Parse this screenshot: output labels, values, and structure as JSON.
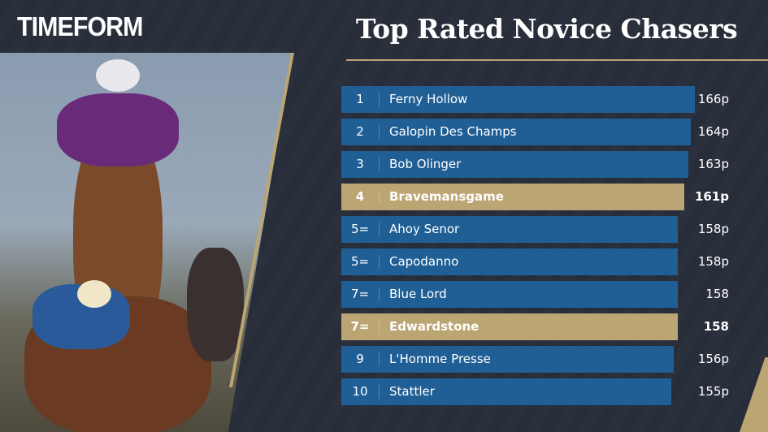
{
  "logo": "TIMEFORM",
  "title": "Top Rated Novice Chasers",
  "colors": {
    "background": "#272d39",
    "bar": "#1f5f96",
    "highlight": "#bba573"
  },
  "chart_data": {
    "type": "bar",
    "orientation": "horizontal",
    "title": "Top Rated Novice Chasers",
    "xlim": [
      0,
      166
    ],
    "rows": [
      {
        "rank": "1",
        "name": "Ferny Hollow",
        "value": 166,
        "label": "166p",
        "highlight": false
      },
      {
        "rank": "2",
        "name": "Galopin Des Champs",
        "value": 164,
        "label": "164p",
        "highlight": false
      },
      {
        "rank": "3",
        "name": "Bob Olinger",
        "value": 163,
        "label": "163p",
        "highlight": false
      },
      {
        "rank": "4",
        "name": "Bravemansgame",
        "value": 161,
        "label": "161p",
        "highlight": true
      },
      {
        "rank": "5=",
        "name": "Ahoy Senor",
        "value": 158,
        "label": "158p",
        "highlight": false
      },
      {
        "rank": "5=",
        "name": "Capodanno",
        "value": 158,
        "label": "158p",
        "highlight": false
      },
      {
        "rank": "7=",
        "name": "Blue Lord",
        "value": 158,
        "label": "158",
        "highlight": false
      },
      {
        "rank": "7=",
        "name": "Edwardstone",
        "value": 158,
        "label": "158",
        "highlight": true
      },
      {
        "rank": "9",
        "name": "L'Homme Presse",
        "value": 156,
        "label": "156p",
        "highlight": false
      },
      {
        "rank": "10",
        "name": "Stattler",
        "value": 155,
        "label": "155p",
        "highlight": false
      }
    ]
  }
}
